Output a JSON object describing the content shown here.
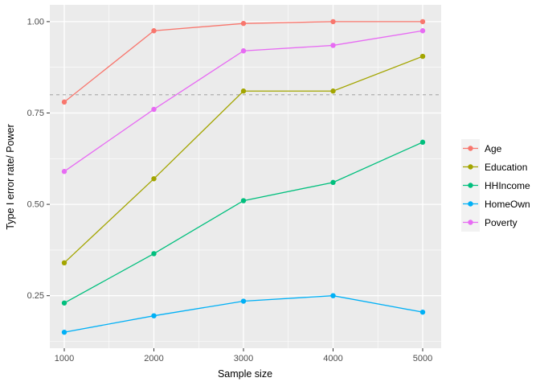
{
  "figure": {
    "background": "#FFFFFF",
    "panel_background": "#EBEBEB",
    "grid_color": "#FFFFFF",
    "tick_color": "#333333",
    "tick_label_color": "#4D4D4D",
    "axis_title_color": "#000000",
    "legend_key_fill": "#F2F2F2"
  },
  "chart_data": {
    "type": "line",
    "title": "",
    "xlabel": "Sample size",
    "ylabel": "Type I error rate/ Power",
    "x": [
      1000,
      2000,
      3000,
      4000,
      5000
    ],
    "x_tick_labels": [
      "1000",
      "2000",
      "3000",
      "4000",
      "5000"
    ],
    "y_ticks": [
      0.25,
      0.5,
      0.75,
      1.0
    ],
    "y_tick_labels": [
      "0.25",
      "0.50",
      "0.75",
      "1.00"
    ],
    "xlim": [
      800,
      5200
    ],
    "ylim": [
      0.1,
      1.05
    ],
    "grid": true,
    "legend_position": "right",
    "reference_line": {
      "y": 0.8,
      "style": "dashed",
      "color": "#A8A8A8"
    },
    "series": [
      {
        "name": "Age",
        "color": "#F8766D",
        "values": [
          0.78,
          0.975,
          0.995,
          1.0,
          1.0
        ]
      },
      {
        "name": "Education",
        "color": "#A3A500",
        "values": [
          0.34,
          0.57,
          0.81,
          0.81,
          0.905
        ]
      },
      {
        "name": "HHIncome",
        "color": "#00BF7D",
        "values": [
          0.23,
          0.365,
          0.51,
          0.56,
          0.67
        ]
      },
      {
        "name": "HomeOwn",
        "color": "#00B0F6",
        "values": [
          0.15,
          0.195,
          0.235,
          0.25,
          0.205
        ]
      },
      {
        "name": "Poverty",
        "color": "#E76BF3",
        "values": [
          0.59,
          0.76,
          0.92,
          0.935,
          0.975
        ]
      }
    ]
  }
}
